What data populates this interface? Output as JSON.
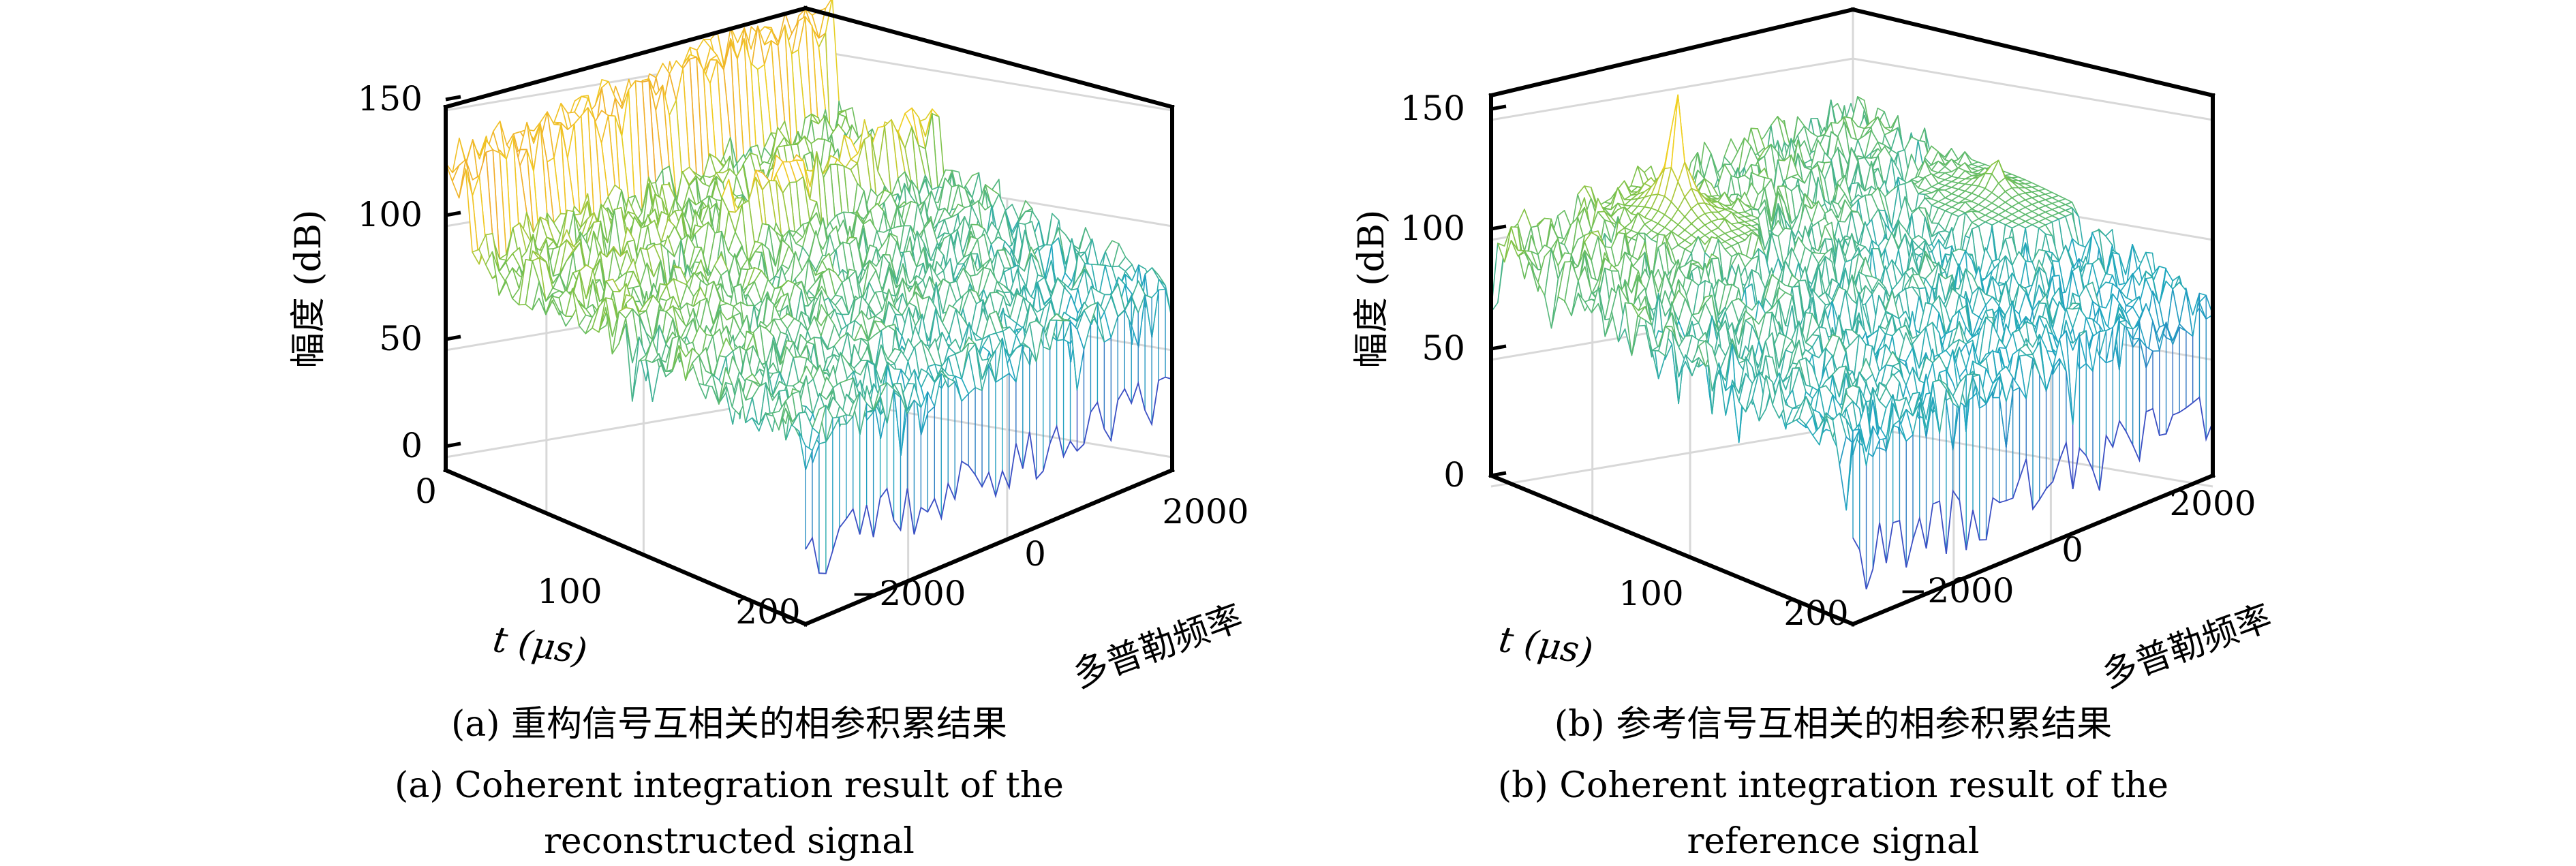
{
  "chart_data": [
    {
      "type": "surface",
      "panel": "a",
      "caption_cn": "(a) 重构信号互相关的相参积累结果",
      "caption_en_line1": "(a) Coherent integration result of the",
      "caption_en_line2": "reconstructed signal",
      "xlabel": "t (μs)",
      "ylabel": "多普勒频率",
      "zlabel": "幅度 (dB)",
      "xlim": [
        0,
        210
      ],
      "ylim": [
        -2700,
        2700
      ],
      "zlim": [
        -5,
        155
      ],
      "xticks": [
        "0",
        "100",
        "200"
      ],
      "yticks": [
        "-2000",
        "0",
        "2000"
      ],
      "zticks": [
        "0",
        "50",
        "100",
        "150"
      ],
      "grid": true,
      "noise_floor_db": 85,
      "ridges": [
        {
          "t_range": [
            0,
            12
          ],
          "f_range": [
            -2700,
            2700
          ],
          "z": 125
        },
        {
          "t_range": [
            66,
            76
          ],
          "f_range": [
            -330,
            2700
          ],
          "z": 102
        }
      ],
      "peaks": []
    },
    {
      "type": "surface",
      "panel": "b",
      "caption_cn": "(b) 参考信号互相关的相参积累结果",
      "caption_en_line1": "(b) Coherent integration result of the",
      "caption_en_line2": "reference signal",
      "xlabel": "t (μs)",
      "ylabel": "多普勒频率",
      "zlabel": "幅度 (dB)",
      "xlim": [
        0,
        210
      ],
      "ylim": [
        -2700,
        2700
      ],
      "zlim": [
        0,
        155
      ],
      "xticks": [
        "100",
        "200"
      ],
      "yticks": [
        "-2000",
        "0",
        "2000"
      ],
      "zticks": [
        "0",
        "50",
        "100",
        "150"
      ],
      "grid": true,
      "noise_floor_db": 85,
      "ridges": [],
      "peaks": [
        {
          "t": 30,
          "f": -700,
          "z": 160
        },
        {
          "t": 100,
          "f": 2270,
          "z": 110
        }
      ]
    }
  ],
  "colors": {
    "low": "#3b4fc4",
    "mid": "#1fa8c0",
    "green": "#7cc24a",
    "high": "#f0d020",
    "peak_orange": "#f0a030",
    "box": "#000000",
    "grid": "#d8d8d8"
  }
}
